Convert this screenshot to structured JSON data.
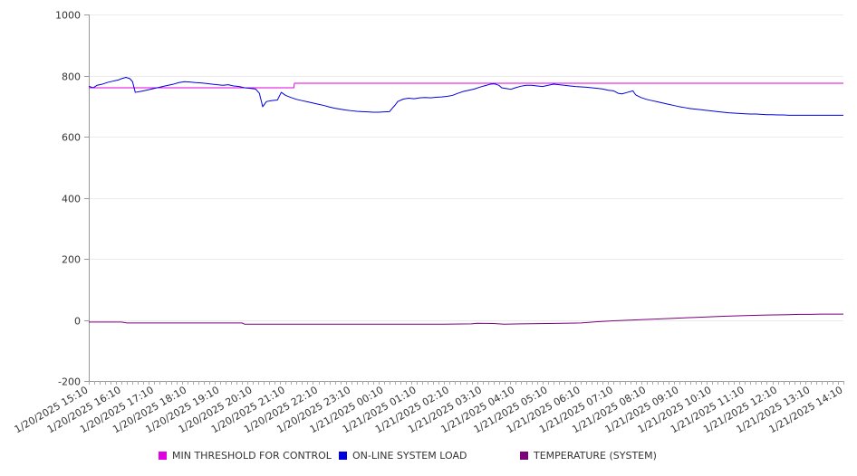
{
  "chart_data": {
    "type": "line",
    "ylim": [
      -200,
      1000
    ],
    "yticks": [
      -200,
      0,
      200,
      400,
      600,
      800,
      1000
    ],
    "xlim": [
      0,
      1380
    ],
    "x_tick_labels": [
      "1/20/2025 15:10",
      "1/20/2025 16:10",
      "1/20/2025 17:10",
      "1/20/2025 18:10",
      "1/20/2025 19:10",
      "1/20/2025 20:10",
      "1/20/2025 21:10",
      "1/20/2025 22:10",
      "1/20/2025 23:10",
      "1/21/2025 00:10",
      "1/21/2025 01:10",
      "1/21/2025 02:10",
      "1/21/2025 03:10",
      "1/21/2025 04:10",
      "1/21/2025 05:10",
      "1/21/2025 06:10",
      "1/21/2025 07:10",
      "1/21/2025 08:10",
      "1/21/2025 09:10",
      "1/21/2025 10:10",
      "1/21/2025 11:10",
      "1/21/2025 12:10",
      "1/21/2025 13:10",
      "1/21/2025 14:10"
    ],
    "grid": true,
    "legend_position": "bottom",
    "series": [
      {
        "name": "MIN THRESHOLD FOR CONTROL",
        "color": "#e100e1",
        "points": [
          [
            0,
            760
          ],
          [
            300,
            760
          ],
          [
            375,
            760
          ],
          [
            376,
            775
          ],
          [
            1380,
            775
          ]
        ]
      },
      {
        "name": "ON-LINE SYSTEM LOAD",
        "color": "#0000dd",
        "points": [
          [
            0,
            765
          ],
          [
            8,
            760
          ],
          [
            15,
            768
          ],
          [
            25,
            772
          ],
          [
            35,
            778
          ],
          [
            45,
            782
          ],
          [
            55,
            786
          ],
          [
            60,
            790
          ],
          [
            68,
            794
          ],
          [
            75,
            790
          ],
          [
            80,
            780
          ],
          [
            85,
            745
          ],
          [
            95,
            748
          ],
          [
            105,
            752
          ],
          [
            115,
            756
          ],
          [
            125,
            760
          ],
          [
            135,
            764
          ],
          [
            145,
            768
          ],
          [
            155,
            772
          ],
          [
            165,
            777
          ],
          [
            175,
            780
          ],
          [
            185,
            779
          ],
          [
            195,
            777
          ],
          [
            205,
            776
          ],
          [
            215,
            774
          ],
          [
            225,
            772
          ],
          [
            235,
            770
          ],
          [
            245,
            768
          ],
          [
            255,
            770
          ],
          [
            265,
            766
          ],
          [
            275,
            764
          ],
          [
            285,
            760
          ],
          [
            295,
            758
          ],
          [
            305,
            756
          ],
          [
            312,
            742
          ],
          [
            318,
            698
          ],
          [
            325,
            715
          ],
          [
            335,
            718
          ],
          [
            345,
            720
          ],
          [
            352,
            745
          ],
          [
            360,
            735
          ],
          [
            370,
            728
          ],
          [
            380,
            722
          ],
          [
            390,
            718
          ],
          [
            400,
            714
          ],
          [
            410,
            710
          ],
          [
            420,
            706
          ],
          [
            430,
            702
          ],
          [
            440,
            697
          ],
          [
            450,
            693
          ],
          [
            460,
            690
          ],
          [
            470,
            687
          ],
          [
            480,
            685
          ],
          [
            490,
            683
          ],
          [
            500,
            682
          ],
          [
            510,
            681
          ],
          [
            520,
            680
          ],
          [
            530,
            680
          ],
          [
            540,
            681
          ],
          [
            550,
            682
          ],
          [
            556,
            695
          ],
          [
            560,
            703
          ],
          [
            565,
            715
          ],
          [
            575,
            723
          ],
          [
            585,
            726
          ],
          [
            595,
            724
          ],
          [
            605,
            727
          ],
          [
            615,
            728
          ],
          [
            625,
            727
          ],
          [
            635,
            729
          ],
          [
            645,
            730
          ],
          [
            655,
            732
          ],
          [
            665,
            735
          ],
          [
            675,
            742
          ],
          [
            685,
            748
          ],
          [
            695,
            752
          ],
          [
            705,
            756
          ],
          [
            715,
            762
          ],
          [
            725,
            767
          ],
          [
            735,
            772
          ],
          [
            742,
            773
          ],
          [
            750,
            768
          ],
          [
            755,
            760
          ],
          [
            765,
            757
          ],
          [
            772,
            755
          ],
          [
            780,
            760
          ],
          [
            790,
            765
          ],
          [
            800,
            768
          ],
          [
            810,
            768
          ],
          [
            820,
            766
          ],
          [
            830,
            764
          ],
          [
            840,
            768
          ],
          [
            850,
            772
          ],
          [
            860,
            770
          ],
          [
            870,
            768
          ],
          [
            880,
            766
          ],
          [
            890,
            764
          ],
          [
            900,
            763
          ],
          [
            910,
            762
          ],
          [
            920,
            760
          ],
          [
            930,
            758
          ],
          [
            940,
            756
          ],
          [
            950,
            752
          ],
          [
            960,
            750
          ],
          [
            968,
            742
          ],
          [
            975,
            740
          ],
          [
            985,
            745
          ],
          [
            995,
            750
          ],
          [
            1000,
            737
          ],
          [
            1010,
            728
          ],
          [
            1020,
            722
          ],
          [
            1030,
            718
          ],
          [
            1040,
            714
          ],
          [
            1050,
            710
          ],
          [
            1060,
            706
          ],
          [
            1070,
            702
          ],
          [
            1080,
            698
          ],
          [
            1090,
            695
          ],
          [
            1100,
            692
          ],
          [
            1110,
            690
          ],
          [
            1120,
            688
          ],
          [
            1130,
            686
          ],
          [
            1140,
            684
          ],
          [
            1150,
            682
          ],
          [
            1160,
            680
          ],
          [
            1170,
            678
          ],
          [
            1180,
            677
          ],
          [
            1190,
            676
          ],
          [
            1200,
            675
          ],
          [
            1210,
            674
          ],
          [
            1220,
            674
          ],
          [
            1230,
            673
          ],
          [
            1240,
            672
          ],
          [
            1250,
            672
          ],
          [
            1260,
            671
          ],
          [
            1270,
            671
          ],
          [
            1280,
            670
          ],
          [
            1290,
            670
          ],
          [
            1300,
            670
          ],
          [
            1310,
            670
          ],
          [
            1320,
            670
          ],
          [
            1330,
            670
          ],
          [
            1340,
            670
          ],
          [
            1350,
            670
          ],
          [
            1360,
            670
          ],
          [
            1370,
            670
          ],
          [
            1380,
            670
          ]
        ]
      },
      {
        "name": "TEMPERATURE (SYSTEM)",
        "color": "#7a007a",
        "points": [
          [
            0,
            -7
          ],
          [
            60,
            -7
          ],
          [
            70,
            -10
          ],
          [
            200,
            -10
          ],
          [
            280,
            -10
          ],
          [
            285,
            -14
          ],
          [
            500,
            -14
          ],
          [
            580,
            -14
          ],
          [
            650,
            -14
          ],
          [
            700,
            -13
          ],
          [
            710,
            -11
          ],
          [
            740,
            -12
          ],
          [
            760,
            -14
          ],
          [
            790,
            -13
          ],
          [
            840,
            -12
          ],
          [
            900,
            -10
          ],
          [
            930,
            -6
          ],
          [
            960,
            -3
          ],
          [
            1000,
            0
          ],
          [
            1040,
            3
          ],
          [
            1080,
            6
          ],
          [
            1120,
            9
          ],
          [
            1160,
            12
          ],
          [
            1200,
            14
          ],
          [
            1240,
            16
          ],
          [
            1280,
            17
          ],
          [
            1300,
            18
          ],
          [
            1320,
            18
          ],
          [
            1340,
            19
          ],
          [
            1360,
            19
          ],
          [
            1380,
            19
          ]
        ]
      }
    ]
  }
}
